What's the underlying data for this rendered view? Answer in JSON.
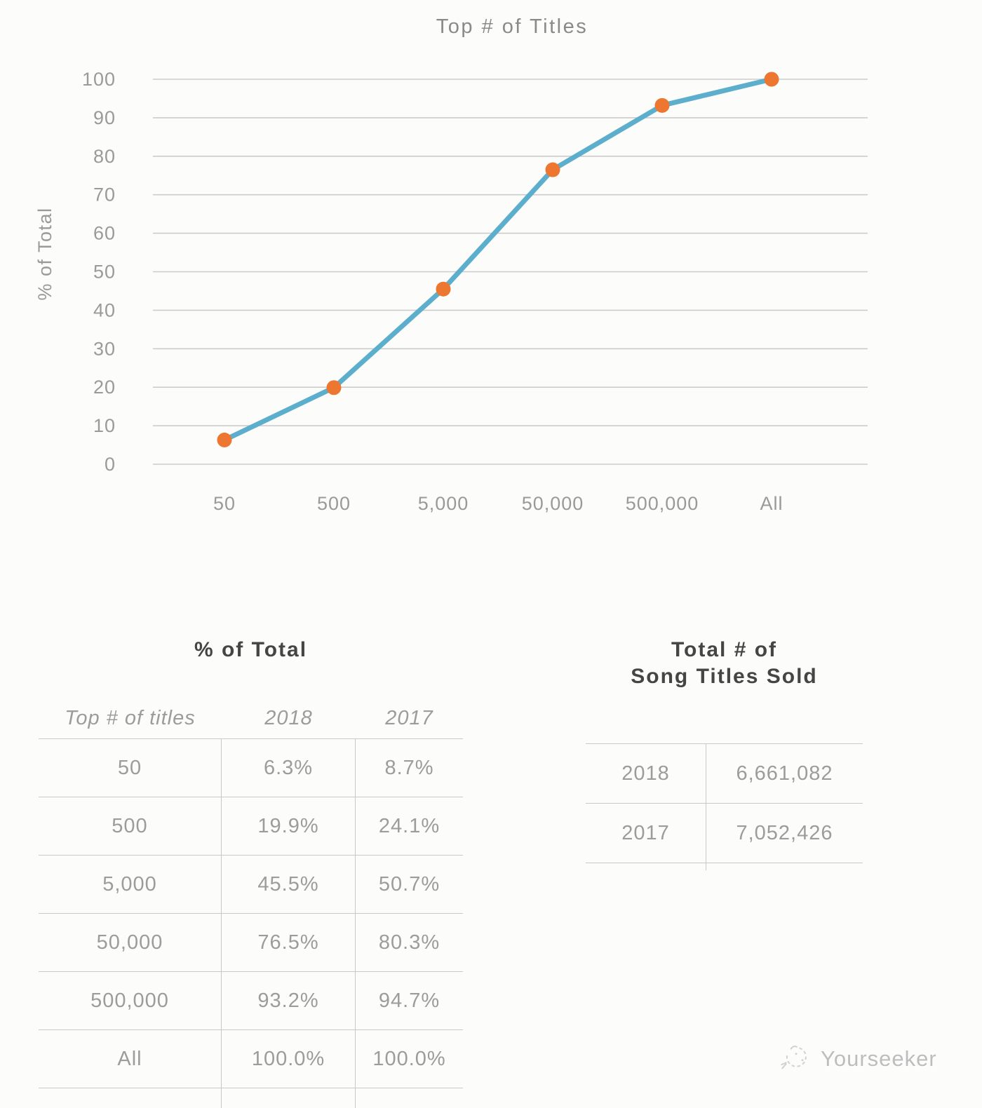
{
  "chart_data": {
    "type": "line",
    "title": "Top # of Titles",
    "xlabel": "",
    "ylabel": "% of Total",
    "categories": [
      "50",
      "500",
      "5,000",
      "50,000",
      "500,000",
      "All"
    ],
    "series": [
      {
        "name": "2018",
        "values": [
          6.3,
          19.9,
          45.5,
          76.5,
          93.2,
          100.0
        ]
      }
    ],
    "ylim": [
      0,
      100
    ],
    "ytick_step": 10,
    "grid": "horizontal-only",
    "legend": "none",
    "line_color": "#5CAECD",
    "marker_color": "#ED7630",
    "gridline_color": "#cccccc"
  },
  "percent_table": {
    "title": "% of Total",
    "columns": [
      "Top # of titles",
      "2018",
      "2017"
    ],
    "rows": [
      [
        "50",
        "6.3%",
        "8.7%"
      ],
      [
        "500",
        "19.9%",
        "24.1%"
      ],
      [
        "5,000",
        "45.5%",
        "50.7%"
      ],
      [
        "50,000",
        "76.5%",
        "80.3%"
      ],
      [
        "500,000",
        "93.2%",
        "94.7%"
      ],
      [
        "All",
        "100.0%",
        "100.0%"
      ]
    ]
  },
  "totals_table": {
    "title_line1": "Total # of",
    "title_line2": "Song Titles Sold",
    "rows": [
      [
        "2018",
        "6,661,082"
      ],
      [
        "2017",
        "7,052,426"
      ]
    ]
  },
  "watermark": {
    "text": "Yourseeker"
  }
}
